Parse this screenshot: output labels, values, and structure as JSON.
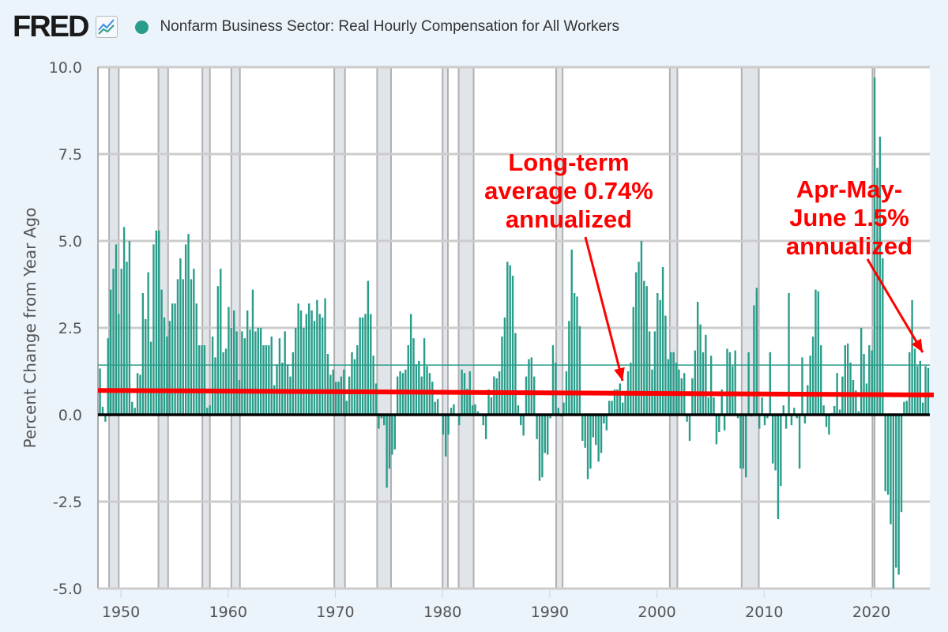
{
  "header": {
    "logo_text": "FRED",
    "series_title": "Nonfarm Business Sector: Real Hourly Compensation for All Workers"
  },
  "annotations": {
    "long_term": [
      "Long-term",
      "average 0.74%",
      "annualized"
    ],
    "recent": [
      "Apr-May-",
      "June 1.5%",
      "annualized"
    ]
  },
  "colors": {
    "bars": "#2a9d8a",
    "annotation": "#ff0000",
    "zero_line": "#000000",
    "recession": "#e1e5ea",
    "background": "#ebf3fb"
  },
  "chart_data": {
    "type": "bar",
    "title": "Nonfarm Business Sector: Real Hourly Compensation for All Workers",
    "ylabel": "Percent Change from Year Ago",
    "xlabel": "",
    "frequency": "quarterly",
    "start": "1948 Q1",
    "end": "2025 Q2",
    "xlim": [
      1947.86,
      2025.45
    ],
    "ylim": [
      -5.0,
      10.0
    ],
    "x_ticks": [
      "1950",
      "1960",
      "1970",
      "1980",
      "1990",
      "2000",
      "2010",
      "2020"
    ],
    "y_ticks": [
      "-5.0",
      "-2.5",
      "0.0",
      "2.5",
      "5.0",
      "7.5",
      "10.0"
    ],
    "grid": true,
    "recessions": [
      [
        1948.9,
        1949.8
      ],
      [
        1953.5,
        1954.4
      ],
      [
        1957.6,
        1958.3
      ],
      [
        1960.3,
        1961.1
      ],
      [
        1969.9,
        1970.9
      ],
      [
        1973.9,
        1975.2
      ],
      [
        1980.0,
        1980.5
      ],
      [
        1981.5,
        1982.9
      ],
      [
        1990.6,
        1991.2
      ],
      [
        2001.2,
        2001.9
      ],
      [
        2007.9,
        2009.5
      ],
      [
        2020.1,
        2020.3
      ]
    ],
    "reference_line": 1.43,
    "average_line": {
      "start": [
        1947.86,
        0.7
      ],
      "end": [
        2025.45,
        0.57
      ]
    },
    "values": [
      1.33,
      0.23,
      -0.2,
      2.2,
      3.6,
      4.2,
      4.9,
      2.9,
      4.2,
      5.4,
      4.4,
      5.0,
      0.37,
      0.2,
      1.2,
      1.15,
      3.5,
      2.75,
      4.1,
      2.1,
      4.9,
      5.3,
      5.3,
      3.6,
      2.8,
      2.25,
      2.7,
      3.2,
      3.2,
      3.9,
      4.5,
      3.9,
      4.9,
      5.2,
      3.9,
      4.2,
      3.2,
      2.0,
      2.0,
      2.0,
      0.2,
      0.27,
      2.25,
      1.65,
      3.7,
      4.2,
      1.8,
      1.9,
      3.1,
      2.5,
      3.0,
      2.4,
      1.0,
      2.4,
      2.2,
      3.0,
      2.45,
      3.6,
      2.4,
      2.5,
      2.5,
      2.0,
      2.0,
      2.0,
      2.25,
      0.85,
      1.45,
      2.2,
      1.5,
      2.4,
      1.45,
      1.1,
      1.8,
      2.5,
      3.2,
      3.0,
      2.5,
      2.9,
      3.2,
      3.0,
      2.7,
      3.3,
      2.9,
      2.8,
      3.35,
      1.75,
      1.15,
      1.3,
      0.95,
      0.95,
      1.1,
      1.3,
      0.4,
      1.1,
      1.8,
      1.6,
      2.0,
      2.8,
      2.8,
      2.9,
      3.85,
      2.9,
      1.7,
      0.9,
      -0.4,
      -0.1,
      -0.3,
      -2.1,
      -1.55,
      -1.15,
      -1.0,
      1.1,
      1.25,
      1.2,
      1.3,
      2.0,
      2.9,
      2.2,
      1.45,
      1.55,
      1.1,
      2.2,
      1.4,
      1.2,
      0.95,
      0.37,
      0.45,
      0.0,
      -0.57,
      -1.2,
      -0.57,
      0.2,
      0.3,
      0.0,
      -0.3,
      1.3,
      1.2,
      0.75,
      1.25,
      0.27,
      0.3,
      0.1,
      0.0,
      -0.3,
      -0.7,
      0.73,
      0.5,
      1.1,
      1.05,
      1.25,
      2.25,
      2.8,
      4.4,
      4.3,
      4.0,
      2.35,
      0.27,
      -0.3,
      -0.6,
      1.1,
      1.6,
      1.65,
      1.1,
      -0.7,
      -1.9,
      -1.8,
      -1.1,
      -1.15,
      -0.1,
      2.0,
      1.5,
      0.2,
      -0.05,
      0.35,
      1.25,
      2.7,
      4.75,
      3.5,
      3.4,
      2.55,
      -0.75,
      -0.95,
      -1.85,
      -1.55,
      -0.65,
      -0.87,
      -1.35,
      -1.1,
      -0.25,
      -0.45,
      0.4,
      0.4,
      0.73,
      0.73,
      0.9,
      0.35,
      0.57,
      1.25,
      1.5,
      3.1,
      4.1,
      4.4,
      5.0,
      3.85,
      3.7,
      2.4,
      1.3,
      2.4,
      3.5,
      3.3,
      4.25,
      2.85,
      1.6,
      1.8,
      1.8,
      1.5,
      1.3,
      1.05,
      1.2,
      -0.2,
      -0.75,
      1.05,
      1.85,
      3.25,
      2.6,
      1.8,
      2.3,
      0.5,
      1.7,
      0.5,
      -0.85,
      -0.5,
      0.73,
      -0.45,
      1.9,
      1.8,
      1.4,
      1.85,
      -0.1,
      -1.55,
      -1.55,
      -1.8,
      1.8,
      -0.05,
      3.15,
      3.65,
      -0.4,
      0.5,
      -0.3,
      -0.1,
      1.8,
      -1.4,
      -1.6,
      -3.0,
      -2.05,
      0.27,
      -0.4,
      3.5,
      -0.3,
      0.2,
      -0.1,
      -1.55,
      1.65,
      -0.25,
      0.85,
      1.7,
      2.25,
      3.6,
      3.55,
      2.0,
      0.27,
      -0.35,
      -0.57,
      0.05,
      0.25,
      1.2,
      0.15,
      1.1,
      2.0,
      2.05,
      1.5,
      1.0,
      0.7,
      0.1,
      2.5,
      1.75,
      0.9,
      2.0,
      1.85,
      9.7,
      7.1,
      8.0,
      4.5,
      -2.2,
      -2.3,
      -3.15,
      -5.0,
      -4.4,
      -4.6,
      -2.8,
      0.37,
      0.4,
      1.8,
      3.3,
      1.9,
      1.4,
      1.55,
      0.35,
      1.4,
      1.35
    ]
  }
}
